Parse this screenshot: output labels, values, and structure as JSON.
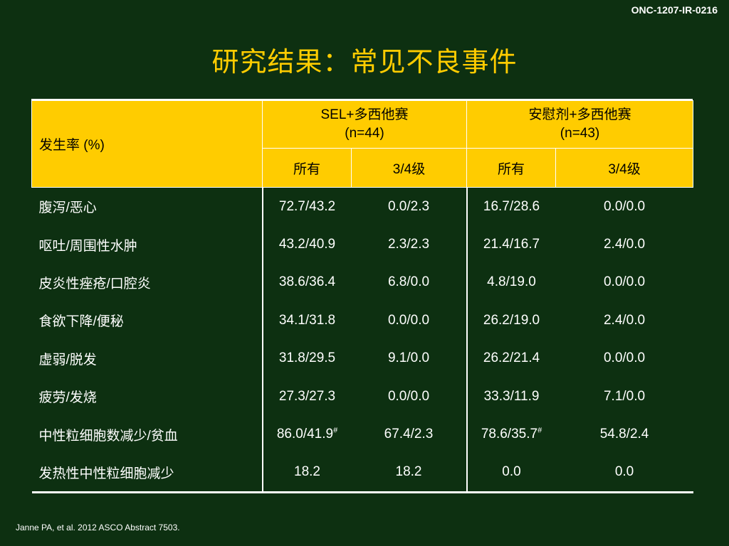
{
  "doc_id": "ONC-1207-IR-0216",
  "title": "研究结果：常见不良事件",
  "table": {
    "rate_label": "发生率 (%)",
    "groups": [
      {
        "name": "SEL+多西他赛",
        "n": "(n=44)"
      },
      {
        "name": "安慰剂+多西他赛",
        "n": "(n=43)"
      }
    ],
    "subheaders": [
      "所有",
      "3/4级",
      "所有",
      "3/4级"
    ],
    "rows": [
      {
        "name": "腹泻/恶心",
        "cells": [
          "72.7/43.2",
          "0.0/2.3",
          "16.7/28.6",
          "0.0/0.0"
        ]
      },
      {
        "name": "呕吐/周围性水肿",
        "cells": [
          "43.2/40.9",
          "2.3/2.3",
          "21.4/16.7",
          "2.4/0.0"
        ]
      },
      {
        "name": "皮炎性痤疮/口腔炎",
        "cells": [
          "38.6/36.4",
          "6.8/0.0",
          "4.8/19.0",
          "0.0/0.0"
        ]
      },
      {
        "name": "食欲下降/便秘",
        "cells": [
          "34.1/31.8",
          "0.0/0.0",
          "26.2/19.0",
          "2.4/0.0"
        ]
      },
      {
        "name": "虚弱/脱发",
        "cells": [
          "31.8/29.5",
          "9.1/0.0",
          "26.2/21.4",
          "0.0/0.0"
        ]
      },
      {
        "name": "疲劳/发烧",
        "cells": [
          "27.3/27.3",
          "0.0/0.0",
          "33.3/11.9",
          "7.1/0.0"
        ]
      },
      {
        "name": "中性粒细胞数减少/贫血",
        "cells": [
          "86.0/41.9",
          "67.4/2.3",
          "78.6/35.7",
          "54.8/2.4"
        ],
        "marks": [
          "#",
          "",
          "#",
          ""
        ]
      },
      {
        "name": "发热性中性粒细胞减少",
        "cells": [
          "18.2",
          "18.2",
          "0.0",
          "0.0"
        ]
      }
    ]
  },
  "citation": "Janne PA, et al. 2012 ASCO Abstract 7503.",
  "colors": {
    "background": "#0d3011",
    "title": "#ffcc00",
    "header_fill": "#ffcc00"
  }
}
